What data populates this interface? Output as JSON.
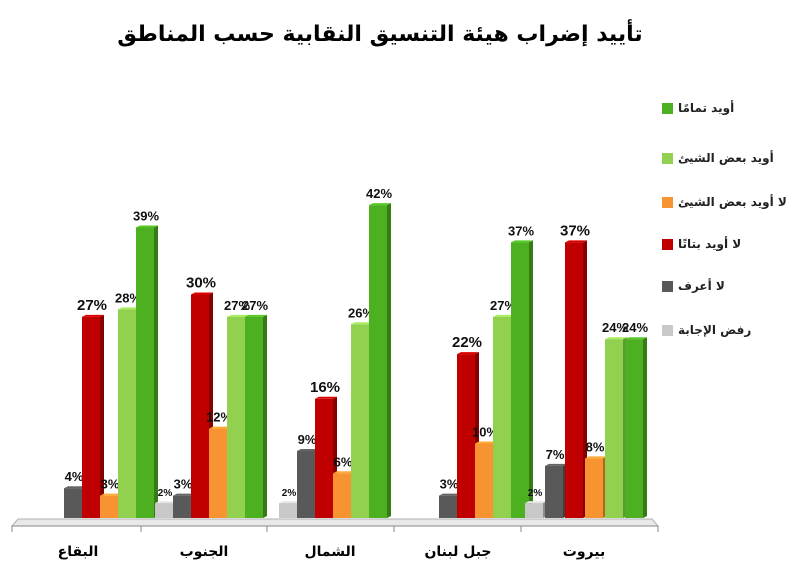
{
  "chart_data": {
    "type": "bar",
    "title": "تأييد إضراب هيئة التنسيق النقابية حسب المناطق",
    "categories": [
      "البقاع",
      "الجنوب",
      "الشمال",
      "جبل لبنان",
      "بيروت"
    ],
    "series": [
      {
        "name": "رفض الإجابة",
        "values": [
          0,
          2,
          2,
          0,
          2
        ],
        "labels": [
          "",
          "2%",
          "2%",
          "",
          "2%"
        ],
        "color": "#c8c8c8"
      },
      {
        "name": "لا أعرف",
        "values": [
          4,
          3,
          9,
          3,
          7
        ],
        "labels": [
          "4%",
          "3%",
          "9%",
          "3%",
          "7%"
        ],
        "color": "#595959"
      },
      {
        "name": "لا أويد بتاتًا",
        "values": [
          27,
          30,
          16,
          22,
          37
        ],
        "labels": [
          "27%",
          "30%",
          "16%",
          "22%",
          "37%"
        ],
        "color": "#c00000"
      },
      {
        "name": "لا أويد بعض الشيئ",
        "values": [
          3,
          12,
          6,
          10,
          8
        ],
        "labels": [
          "3%",
          "12%",
          "6%",
          "10%",
          "8%"
        ],
        "color": "#f79330"
      },
      {
        "name": "أويد بعض الشيئ",
        "values": [
          28,
          27,
          26,
          27,
          24
        ],
        "labels": [
          "28%",
          "27%",
          "26%",
          "27%",
          "24%"
        ],
        "color": "#92d050"
      },
      {
        "name": "أويد تمامًا",
        "values": [
          39,
          27,
          42,
          37,
          24
        ],
        "labels": [
          "39%",
          "27%",
          "42%",
          "37%",
          "24%"
        ],
        "color": "#4cb020"
      }
    ],
    "legend_order": [
      "أويد تمامًا",
      "أويد بعض الشيئ",
      "لا أويد بعض الشيئ",
      "لا أويد بتاتًا",
      "لا أعرف",
      "رفض الإجابة"
    ],
    "legend_position": "right",
    "ylim": [
      0,
      45
    ],
    "grid": false
  }
}
